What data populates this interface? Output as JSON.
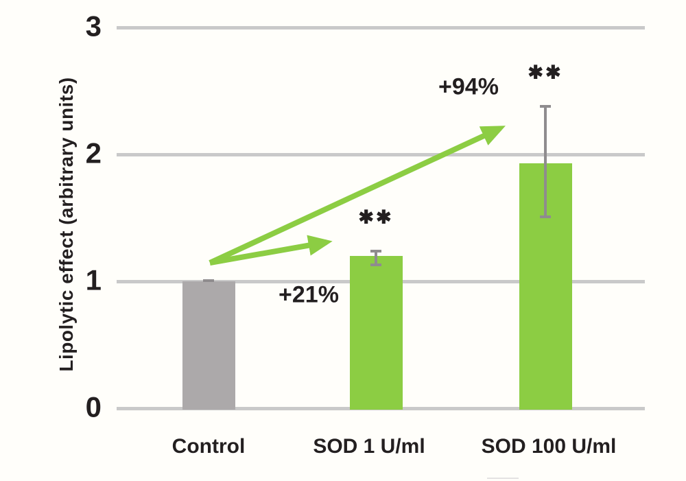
{
  "figure": {
    "background": "#fffefa",
    "text_color": "#231f20"
  },
  "chart_data": {
    "type": "bar",
    "title": "",
    "ylabel": "Lipolytic effect (arbitrary units)",
    "xlabel": "",
    "ylim": [
      0,
      3
    ],
    "yticks": [
      0,
      1,
      2,
      3
    ],
    "grid": true,
    "legend": false,
    "categories": [
      "Control",
      "SOD 1 U/ml",
      "SOD 100 U/ml"
    ],
    "values": [
      1.0,
      1.2,
      1.93
    ],
    "bar_colors": [
      "#aca9aa",
      "#8ccd43",
      "#8ccd43"
    ],
    "error_bars": [
      {
        "low": 0.995,
        "high": 1.015
      },
      {
        "low": 1.12,
        "high": 1.25
      },
      {
        "low": 1.5,
        "high": 2.39
      }
    ],
    "significance_marks": [
      {
        "category": "SOD 1 U/ml",
        "text": "✱✱"
      },
      {
        "category": "SOD 100 U/ml",
        "text": "✱✱"
      }
    ],
    "percent_annotations": [
      {
        "target": "SOD 1 U/ml",
        "text": "+21%"
      },
      {
        "target": "SOD 100 U/ml",
        "text": "+94%"
      }
    ],
    "arrows": [
      {
        "from": "Control",
        "to": "SOD 1 U/ml"
      },
      {
        "from": "Control",
        "to": "SOD 100 U/ml"
      }
    ],
    "colors": {
      "accent_green": "#8ccd43",
      "control_gray": "#aca9aa",
      "error_gray": "#8f8c8e",
      "gridline_gray": "#c9c9c9",
      "text": "#231f20",
      "artifact_gray": "#e4e2e2"
    }
  }
}
